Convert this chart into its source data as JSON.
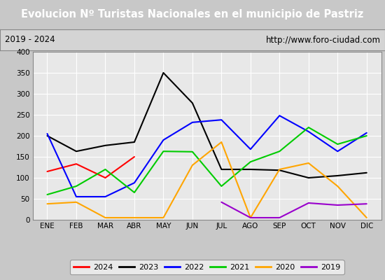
{
  "title": "Evolucion Nº Turistas Nacionales en el municipio de Pastriz",
  "subtitle_left": "2019 - 2024",
  "subtitle_right": "http://www.foro-ciudad.com",
  "months": [
    "ENE",
    "FEB",
    "MAR",
    "ABR",
    "MAY",
    "JUN",
    "JUL",
    "AGO",
    "SEP",
    "OCT",
    "NOV",
    "DIC"
  ],
  "series": {
    "2024": [
      115,
      133,
      100,
      150,
      null,
      null,
      null,
      null,
      null,
      null,
      null,
      null
    ],
    "2023": [
      200,
      163,
      177,
      185,
      350,
      278,
      120,
      120,
      118,
      100,
      105,
      112
    ],
    "2022": [
      205,
      55,
      55,
      88,
      190,
      232,
      238,
      168,
      248,
      210,
      163,
      207
    ],
    "2021": [
      60,
      80,
      120,
      65,
      163,
      162,
      80,
      138,
      163,
      220,
      180,
      200
    ],
    "2020": [
      38,
      42,
      5,
      5,
      5,
      130,
      185,
      5,
      120,
      135,
      80,
      5
    ],
    "2019": [
      null,
      null,
      null,
      null,
      null,
      null,
      42,
      5,
      5,
      40,
      35,
      38
    ]
  },
  "colors": {
    "2024": "#ff0000",
    "2023": "#000000",
    "2022": "#0000ff",
    "2021": "#00cc00",
    "2020": "#ffa500",
    "2019": "#9900cc"
  },
  "ylim": [
    0,
    400
  ],
  "yticks": [
    0,
    50,
    100,
    150,
    200,
    250,
    300,
    350,
    400
  ],
  "title_bg": "#3a7ebf",
  "title_color": "#ffffff",
  "plot_bg": "#e8e8e8",
  "grid_color": "#ffffff",
  "subtitle_bg": "#d4d4d4",
  "fig_bg": "#c8c8c8"
}
